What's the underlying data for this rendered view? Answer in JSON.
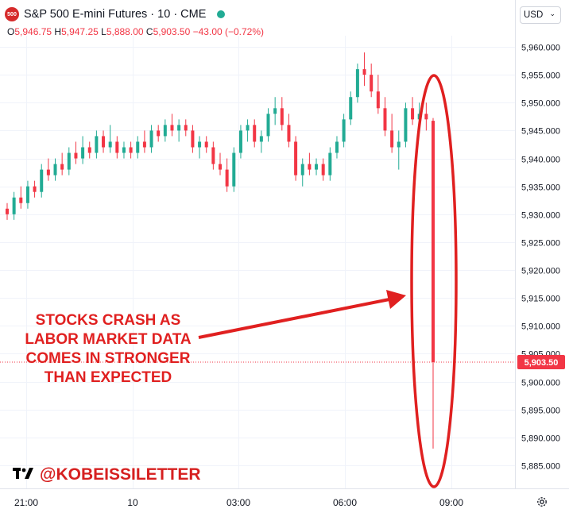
{
  "header": {
    "logo_text": "500",
    "title": "S&P 500 E-mini Futures · 10 · CME",
    "ohlc": [
      {
        "k": "O",
        "v": "5,946.75"
      },
      {
        "k": "H",
        "v": "5,947.25"
      },
      {
        "k": "L",
        "v": "5,888.00"
      },
      {
        "k": "C",
        "v": "5,903.50"
      },
      {
        "k": "",
        "v": "−43.00 (−0.72%)"
      }
    ]
  },
  "currency_selector": {
    "label": "USD"
  },
  "branding": {
    "handle": "@KOBEISSILETTER"
  },
  "annotation": [
    "STOCKS CRASH AS",
    "LABOR MARKET DATA",
    "COMES IN STRONGER",
    "THAN EXPECTED"
  ],
  "colors": {
    "up": "#22ab94",
    "down": "#f23645",
    "annotation": "#e02020"
  },
  "icons": {
    "settings": "gear-icon",
    "logo": "tradingview-logo-icon",
    "dropdown": "chevron-down-icon"
  },
  "chart_data": {
    "type": "candlestick",
    "ylim": [
      5882,
      5964
    ],
    "y_ticks": [
      5885,
      5890,
      5895,
      5900,
      5905,
      5910,
      5915,
      5920,
      5925,
      5930,
      5935,
      5940,
      5945,
      5950,
      5955,
      5960
    ],
    "x_ticks": [
      "21:00",
      "10",
      "03:00",
      "06:00",
      "09:00"
    ],
    "last_price": 5903.5,
    "last_price_label": "5,903.50",
    "candles": [
      [
        5931,
        5932,
        5929,
        5930
      ],
      [
        5930,
        5934,
        5929,
        5933
      ],
      [
        5933,
        5935,
        5931,
        5932
      ],
      [
        5932,
        5936,
        5931,
        5935
      ],
      [
        5935,
        5936,
        5933,
        5934
      ],
      [
        5934,
        5939,
        5933,
        5938
      ],
      [
        5938,
        5940,
        5936,
        5937
      ],
      [
        5937,
        5940,
        5936,
        5939
      ],
      [
        5939,
        5941,
        5937,
        5938
      ],
      [
        5938,
        5942,
        5937,
        5941
      ],
      [
        5941,
        5943,
        5939,
        5940
      ],
      [
        5940,
        5944,
        5939,
        5942
      ],
      [
        5942,
        5943,
        5940,
        5941
      ],
      [
        5941,
        5945,
        5940,
        5944
      ],
      [
        5944,
        5945,
        5941,
        5942
      ],
      [
        5942,
        5946,
        5941,
        5943
      ],
      [
        5943,
        5944,
        5940,
        5941
      ],
      [
        5941,
        5943,
        5940,
        5942
      ],
      [
        5942,
        5943,
        5940,
        5941
      ],
      [
        5941,
        5944,
        5940,
        5943
      ],
      [
        5943,
        5945,
        5941,
        5942
      ],
      [
        5942,
        5946,
        5941,
        5945
      ],
      [
        5945,
        5946,
        5943,
        5944
      ],
      [
        5944,
        5947,
        5943,
        5946
      ],
      [
        5946,
        5948,
        5944,
        5945
      ],
      [
        5945,
        5947,
        5943,
        5946
      ],
      [
        5946,
        5947,
        5944,
        5945
      ],
      [
        5945,
        5946,
        5941,
        5942
      ],
      [
        5942,
        5944,
        5940,
        5943
      ],
      [
        5943,
        5944,
        5941,
        5942
      ],
      [
        5942,
        5943,
        5938,
        5939
      ],
      [
        5939,
        5941,
        5937,
        5938
      ],
      [
        5938,
        5940,
        5934,
        5935
      ],
      [
        5935,
        5942,
        5934,
        5941
      ],
      [
        5941,
        5946,
        5940,
        5945
      ],
      [
        5945,
        5947,
        5943,
        5946
      ],
      [
        5946,
        5947,
        5942,
        5943
      ],
      [
        5943,
        5945,
        5941,
        5944
      ],
      [
        5944,
        5949,
        5943,
        5948
      ],
      [
        5948,
        5951,
        5946,
        5949
      ],
      [
        5949,
        5951,
        5945,
        5946
      ],
      [
        5946,
        5948,
        5942,
        5943
      ],
      [
        5943,
        5944,
        5936,
        5937
      ],
      [
        5937,
        5940,
        5935,
        5939
      ],
      [
        5939,
        5941,
        5937,
        5938
      ],
      [
        5938,
        5940,
        5937,
        5939
      ],
      [
        5939,
        5940,
        5936,
        5937
      ],
      [
        5937,
        5942,
        5936,
        5941
      ],
      [
        5941,
        5944,
        5940,
        5943
      ],
      [
        5943,
        5948,
        5942,
        5947
      ],
      [
        5947,
        5952,
        5946,
        5951
      ],
      [
        5951,
        5957,
        5950,
        5956
      ],
      [
        5956,
        5959,
        5953,
        5955
      ],
      [
        5955,
        5957,
        5951,
        5952
      ],
      [
        5952,
        5955,
        5948,
        5949
      ],
      [
        5949,
        5951,
        5944,
        5945
      ],
      [
        5945,
        5948,
        5941,
        5942
      ],
      [
        5942,
        5945,
        5938,
        5943
      ],
      [
        5943,
        5950,
        5942,
        5949
      ],
      [
        5949,
        5951,
        5946,
        5947
      ],
      [
        5947,
        5950,
        5945,
        5948
      ],
      [
        5948,
        5950,
        5945,
        5947
      ],
      [
        5946.75,
        5947.25,
        5888,
        5903.5
      ]
    ]
  }
}
